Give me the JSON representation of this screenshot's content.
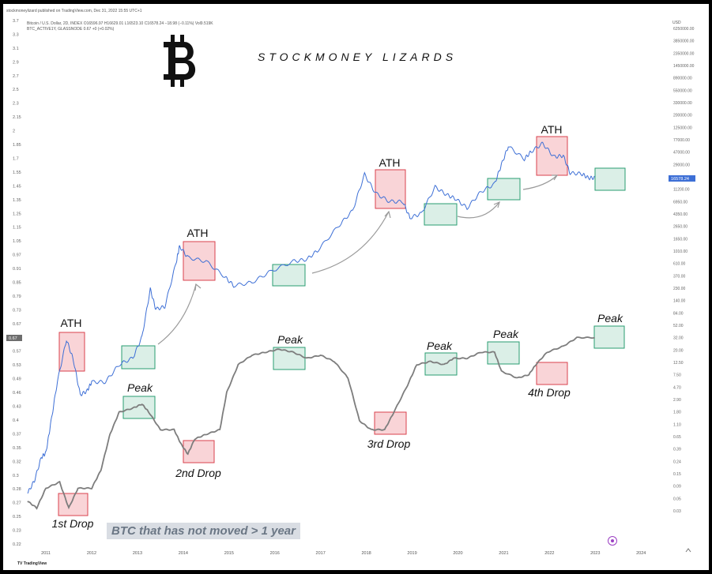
{
  "header": {
    "publisher": "stockmoneylizard published on TradingView.com, Dec 31, 2022 15:55 UTC+1",
    "symbol_line": "Bitcoin / U.S. Dollar, 2D, INDEX O16596.97 H16629.01 L16523.10 C16578.24 −18.98 (−0.11%) Vol9.519K",
    "indicator_line": "BTC_ACTIVE1Y, GLASSNODE 0.67 +0 (+0.02%)",
    "currency": "USD",
    "footer_brand": "TradingView"
  },
  "branding": {
    "logo_symbol": "₿",
    "logo_icon": "bitcoin-logo-icon",
    "title": "STOCKMONEY LIZARDS"
  },
  "caption": "BTC that has not moved > 1 year",
  "last_price_label": "16578.24",
  "indicator_value_label": "0.67",
  "colors": {
    "price_line": "#3d6fd6",
    "indicator_line": "#7d7d7d",
    "red_box_fill": "#f7c6c9",
    "red_box_stroke": "#d9424e",
    "green_box_fill": "#cfe9df",
    "green_box_stroke": "#2a9d72",
    "arrow": "#9a9a9a"
  },
  "annotations": [
    {
      "text": "ATH",
      "style": "normal"
    },
    {
      "text": "ATH",
      "style": "normal"
    },
    {
      "text": "ATH",
      "style": "normal"
    },
    {
      "text": "ATH",
      "style": "normal"
    },
    {
      "text": "Peak",
      "style": "italic"
    },
    {
      "text": "Peak",
      "style": "italic"
    },
    {
      "text": "Peak",
      "style": "italic"
    },
    {
      "text": "Peak",
      "style": "italic"
    },
    {
      "text": "Peak",
      "style": "italic"
    },
    {
      "text": "1st Drop",
      "style": "italic"
    },
    {
      "text": "2nd Drop",
      "style": "italic"
    },
    {
      "text": "3rd Drop",
      "style": "italic"
    },
    {
      "text": "4th Drop",
      "style": "italic"
    }
  ],
  "chart_data": {
    "type": "line",
    "title": "",
    "xlabel": "",
    "ylabel": "",
    "x_ticks": [
      "2011",
      "2012",
      "2013",
      "2014",
      "2015",
      "2016",
      "2017",
      "2018",
      "2019",
      "2020",
      "2021",
      "2022",
      "2023",
      "2024"
    ],
    "left_axis_ticks": [
      "3.7",
      "3.3",
      "3.1",
      "2.9",
      "2.7",
      "2.5",
      "2.3",
      "2.15",
      "2",
      "1.85",
      "1.7",
      "1.55",
      "1.45",
      "1.35",
      "1.25",
      "1.15",
      "1.05",
      "0.97",
      "0.91",
      "0.85",
      "0.79",
      "0.73",
      "0.67",
      "0.61",
      "0.57",
      "0.53",
      "0.49",
      "0.46",
      "0.43",
      "0.4",
      "0.37",
      "0.35",
      "0.32",
      "0.3",
      "0.28",
      "0.27",
      "0.25",
      "0.23",
      "0.22"
    ],
    "right_axis_ticks": [
      "USD",
      "6250000.00",
      "3850000.00",
      "2350000.00",
      "1450000.00",
      "890000.00",
      "550000.00",
      "330000.00",
      "200000.00",
      "125000.00",
      "77000.00",
      "47000.00",
      "29000.00",
      "18000.00",
      "11200.00",
      "6950.00",
      "4350.00",
      "2650.00",
      "1650.00",
      "1010.00",
      "610.00",
      "370.00",
      "230.00",
      "140.00",
      "84.00",
      "52.00",
      "32.00",
      "20.00",
      "12.50",
      "7.50",
      "4.70",
      "2.90",
      "1.80",
      "1.10",
      "0.65",
      "0.39",
      "0.24",
      "0.15",
      "0.09",
      "0.05",
      "0.03"
    ],
    "series": [
      {
        "name": "Bitcoin / U.S. Dollar",
        "axis": "right",
        "scale": "log",
        "points": [
          [
            2010.6,
            0.06
          ],
          [
            2010.75,
            0.1
          ],
          [
            2010.9,
            0.25
          ],
          [
            2011.0,
            0.3
          ],
          [
            2011.1,
            0.9
          ],
          [
            2011.25,
            5
          ],
          [
            2011.45,
            27
          ],
          [
            2011.6,
            12
          ],
          [
            2011.75,
            3
          ],
          [
            2011.9,
            3.5
          ],
          [
            2012.0,
            5
          ],
          [
            2012.3,
            5
          ],
          [
            2012.6,
            10
          ],
          [
            2012.9,
            13
          ],
          [
            2013.1,
            30
          ],
          [
            2013.28,
            200
          ],
          [
            2013.4,
            90
          ],
          [
            2013.6,
            100
          ],
          [
            2013.85,
            600
          ],
          [
            2013.92,
            1100
          ],
          [
            2014.1,
            700
          ],
          [
            2014.5,
            600
          ],
          [
            2014.9,
            330
          ],
          [
            2015.1,
            230
          ],
          [
            2015.5,
            260
          ],
          [
            2015.9,
            400
          ],
          [
            2016.4,
            600
          ],
          [
            2016.7,
            650
          ],
          [
            2016.95,
            950
          ],
          [
            2017.4,
            2500
          ],
          [
            2017.7,
            4500
          ],
          [
            2017.96,
            19000
          ],
          [
            2018.2,
            9000
          ],
          [
            2018.5,
            6500
          ],
          [
            2018.8,
            6400
          ],
          [
            2018.95,
            3400
          ],
          [
            2019.2,
            4000
          ],
          [
            2019.5,
            11500
          ],
          [
            2019.75,
            8500
          ],
          [
            2019.95,
            7200
          ],
          [
            2020.2,
            5000
          ],
          [
            2020.5,
            9500
          ],
          [
            2020.8,
            13000
          ],
          [
            2020.95,
            28000
          ],
          [
            2021.1,
            58000
          ],
          [
            2021.45,
            35000
          ],
          [
            2021.6,
            47000
          ],
          [
            2021.85,
            65000
          ],
          [
            2022.1,
            38000
          ],
          [
            2022.3,
            40000
          ],
          [
            2022.45,
            20000
          ],
          [
            2022.7,
            19500
          ],
          [
            2022.85,
            16500
          ],
          [
            2022.99,
            16578
          ]
        ]
      },
      {
        "name": "BTC_ACTIVE1Y",
        "axis": "left",
        "scale": "log",
        "points": [
          [
            2010.6,
            0.28
          ],
          [
            2010.8,
            0.27
          ],
          [
            2011.0,
            0.3
          ],
          [
            2011.3,
            0.31
          ],
          [
            2011.5,
            0.27
          ],
          [
            2011.7,
            0.3
          ],
          [
            2012.0,
            0.3
          ],
          [
            2012.2,
            0.33
          ],
          [
            2012.4,
            0.4
          ],
          [
            2012.6,
            0.45
          ],
          [
            2012.9,
            0.46
          ],
          [
            2013.1,
            0.47
          ],
          [
            2013.25,
            0.45
          ],
          [
            2013.5,
            0.41
          ],
          [
            2013.8,
            0.41
          ],
          [
            2013.95,
            0.38
          ],
          [
            2014.1,
            0.36
          ],
          [
            2014.25,
            0.39
          ],
          [
            2014.5,
            0.4
          ],
          [
            2014.8,
            0.41
          ],
          [
            2014.95,
            0.5
          ],
          [
            2015.2,
            0.58
          ],
          [
            2015.5,
            0.61
          ],
          [
            2015.8,
            0.62
          ],
          [
            2016.1,
            0.63
          ],
          [
            2016.4,
            0.62
          ],
          [
            2016.7,
            0.6
          ],
          [
            2017.0,
            0.61
          ],
          [
            2017.3,
            0.59
          ],
          [
            2017.6,
            0.54
          ],
          [
            2017.85,
            0.43
          ],
          [
            2018.1,
            0.41
          ],
          [
            2018.4,
            0.41
          ],
          [
            2018.6,
            0.45
          ],
          [
            2018.9,
            0.52
          ],
          [
            2019.1,
            0.58
          ],
          [
            2019.4,
            0.59
          ],
          [
            2019.7,
            0.58
          ],
          [
            2019.9,
            0.6
          ],
          [
            2020.2,
            0.6
          ],
          [
            2020.5,
            0.62
          ],
          [
            2020.8,
            0.62
          ],
          [
            2020.95,
            0.56
          ],
          [
            2021.3,
            0.54
          ],
          [
            2021.55,
            0.55
          ],
          [
            2021.7,
            0.58
          ],
          [
            2021.95,
            0.62
          ],
          [
            2022.3,
            0.64
          ],
          [
            2022.6,
            0.67
          ],
          [
            2022.99,
            0.67
          ]
        ]
      }
    ],
    "left_range": [
      0.22,
      3.7
    ],
    "right_range": [
      0.03,
      6250000
    ],
    "x_range": [
      2010.55,
      2024.6
    ],
    "grid": false,
    "legend": "none"
  }
}
